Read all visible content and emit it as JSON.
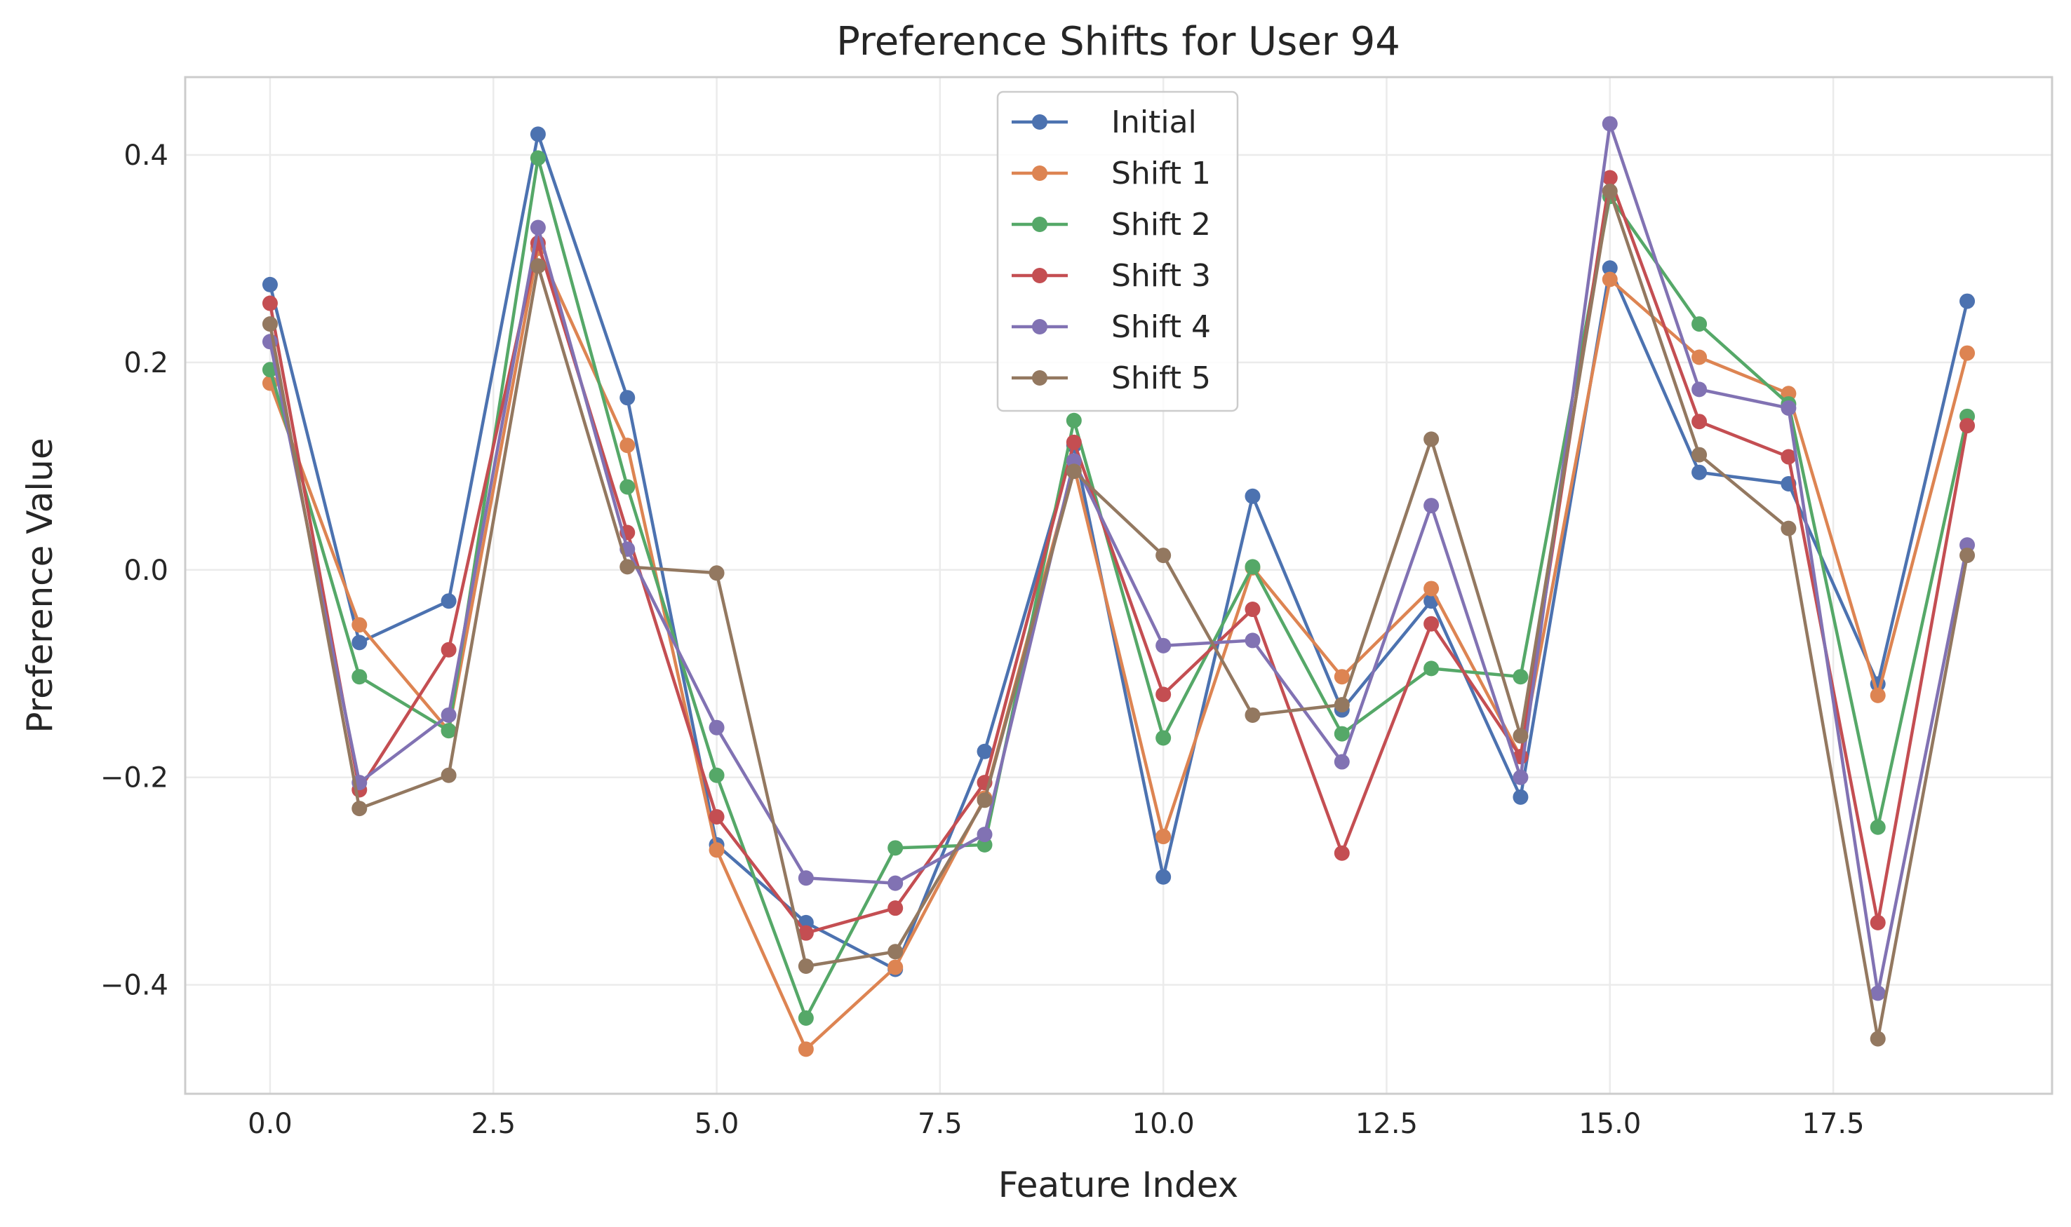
{
  "chart_data": {
    "type": "line",
    "title": "Preference Shifts for User 94",
    "xlabel": "Feature Index",
    "ylabel": "Preference Value",
    "xlim": [
      -0.95,
      19.95
    ],
    "ylim": [
      -0.505,
      0.475
    ],
    "xticks": [
      0.0,
      2.5,
      5.0,
      7.5,
      10.0,
      12.5,
      15.0,
      17.5
    ],
    "xtick_labels": [
      "0.0",
      "2.5",
      "5.0",
      "7.5",
      "10.0",
      "12.5",
      "15.0",
      "17.5"
    ],
    "yticks": [
      -0.4,
      -0.2,
      0.0,
      0.2,
      0.4
    ],
    "ytick_labels": [
      "−0.4",
      "−0.2",
      "0.0",
      "0.2",
      "0.4"
    ],
    "grid": true,
    "legend_position": "top-center",
    "x": [
      0,
      1,
      2,
      3,
      4,
      5,
      6,
      7,
      8,
      9,
      10,
      11,
      12,
      13,
      14,
      15,
      16,
      17,
      18,
      19
    ],
    "series": [
      {
        "name": "Initial",
        "color": "#4c72b0",
        "values": [
          0.275,
          -0.07,
          -0.03,
          0.42,
          0.166,
          -0.265,
          -0.34,
          -0.385,
          -0.175,
          0.12,
          -0.296,
          0.071,
          -0.135,
          -0.03,
          -0.219,
          0.291,
          0.094,
          0.083,
          -0.11,
          0.259
        ]
      },
      {
        "name": "Shift 1",
        "color": "#dd8452",
        "values": [
          0.18,
          -0.053,
          -0.155,
          0.31,
          0.12,
          -0.27,
          -0.462,
          -0.383,
          -0.22,
          0.1,
          -0.257,
          0.002,
          -0.103,
          -0.018,
          -0.18,
          0.28,
          0.205,
          0.17,
          -0.121,
          0.209
        ]
      },
      {
        "name": "Shift 2",
        "color": "#55a868",
        "values": [
          0.193,
          -0.103,
          -0.155,
          0.397,
          0.08,
          -0.198,
          -0.432,
          -0.268,
          -0.265,
          0.144,
          -0.162,
          0.003,
          -0.158,
          -0.095,
          -0.103,
          0.36,
          0.237,
          0.16,
          -0.248,
          0.148
        ]
      },
      {
        "name": "Shift 3",
        "color": "#c44e52",
        "values": [
          0.257,
          -0.212,
          -0.077,
          0.315,
          0.036,
          -0.238,
          -0.35,
          -0.326,
          -0.205,
          0.123,
          -0.12,
          -0.038,
          -0.273,
          -0.052,
          -0.18,
          0.378,
          0.143,
          0.109,
          -0.34,
          0.139
        ]
      },
      {
        "name": "Shift 4",
        "color": "#8172b3",
        "values": [
          0.22,
          -0.205,
          -0.14,
          0.33,
          0.02,
          -0.152,
          -0.297,
          -0.302,
          -0.255,
          0.105,
          -0.073,
          -0.068,
          -0.185,
          0.062,
          -0.2,
          0.43,
          0.174,
          0.156,
          -0.408,
          0.024
        ]
      },
      {
        "name": "Shift 5",
        "color": "#937860",
        "values": [
          0.237,
          -0.23,
          -0.198,
          0.293,
          0.003,
          -0.003,
          -0.382,
          -0.368,
          -0.222,
          0.095,
          0.014,
          -0.14,
          -0.13,
          0.126,
          -0.16,
          0.365,
          0.111,
          0.04,
          -0.452,
          0.014
        ]
      }
    ]
  }
}
